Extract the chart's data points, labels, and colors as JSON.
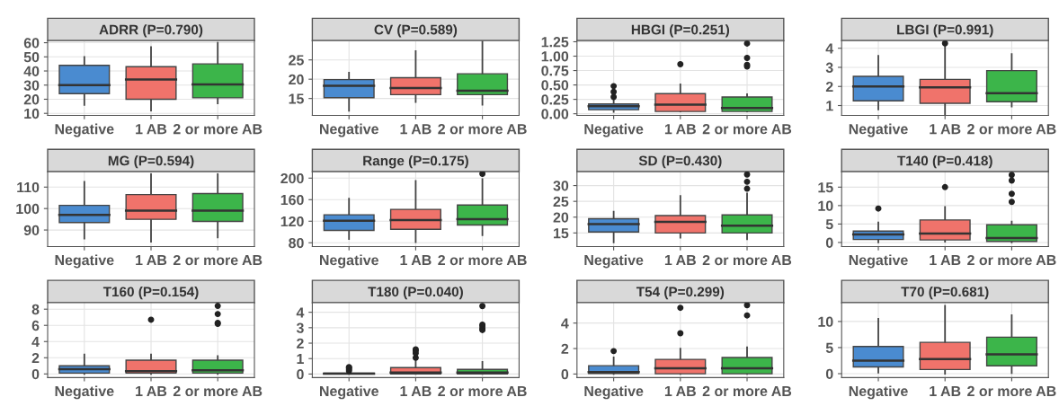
{
  "chart_data": [
    {
      "type": "box",
      "title": "ADRR (P=0.790)",
      "categories": [
        "Negative",
        "1 AB",
        "2 or more AB"
      ],
      "colors": [
        "#4a8bd0",
        "#f0736b",
        "#3cb54a"
      ],
      "ylim": [
        8.5,
        61.5
      ],
      "yticks": [
        10,
        20,
        30,
        40,
        50,
        60
      ],
      "grid": true,
      "boxes": [
        {
          "low": 16,
          "q1": 24,
          "median": 30,
          "q3": 44,
          "high": 50
        },
        {
          "low": 12,
          "q1": 20,
          "median": 34,
          "q3": 43,
          "high": 57
        },
        {
          "low": 17,
          "q1": 21,
          "median": 30.5,
          "q3": 45,
          "high": 60
        }
      ]
    },
    {
      "type": "box",
      "title": "CV (P=0.589)",
      "categories": [
        "Negative",
        "1 AB",
        "2 or more AB"
      ],
      "colors": [
        "#4a8bd0",
        "#f0736b",
        "#3cb54a"
      ],
      "ylim": [
        10.6,
        30
      ],
      "yticks": [
        15,
        20,
        25
      ],
      "grid": true,
      "boxes": [
        {
          "low": 11.8,
          "q1": 15.2,
          "median": 18.3,
          "q3": 19.9,
          "high": 21.7
        },
        {
          "low": 14.1,
          "q1": 16,
          "median": 17.7,
          "q3": 20.4,
          "high": 27.3
        },
        {
          "low": 13.4,
          "q1": 16,
          "median": 17,
          "q3": 21.4,
          "high": 29.8
        }
      ]
    },
    {
      "type": "box",
      "title": "HBGI (P=0.251)",
      "categories": [
        "Negative",
        "1 AB",
        "2 or more AB"
      ],
      "colors": [
        "#4a8bd0",
        "#f0736b",
        "#3cb54a"
      ],
      "ylim": [
        -0.03,
        1.27
      ],
      "yticks": [
        {
          "value": 0,
          "label": "0.00"
        },
        {
          "value": 0.25,
          "label": "0.25"
        },
        {
          "value": 0.5,
          "label": "0.50"
        },
        {
          "value": 0.75,
          "label": "0.75"
        },
        {
          "value": 1,
          "label": "1.00"
        },
        {
          "value": 1.25,
          "label": "1.25"
        }
      ],
      "grid": true,
      "boxes": [
        {
          "low": 0.03,
          "q1": 0.07,
          "median": 0.13,
          "q3": 0.17,
          "high": 0.25,
          "outliers": [
            0.29,
            0.38,
            0.48
          ]
        },
        {
          "low": 0.04,
          "q1": 0.04,
          "median": 0.16,
          "q3": 0.35,
          "high": 0.51,
          "outliers": [
            0.86
          ]
        },
        {
          "low": 0.04,
          "q1": 0.04,
          "median": 0.1,
          "q3": 0.29,
          "high": 0.34,
          "outliers": [
            0.82,
            0.85,
            0.97,
            1.22
          ]
        }
      ]
    },
    {
      "type": "box",
      "title": "LBGI (P=0.991)",
      "categories": [
        "Negative",
        "1 AB",
        "2 or more AB"
      ],
      "colors": [
        "#4a8bd0",
        "#f0736b",
        "#3cb54a"
      ],
      "ylim": [
        0.48,
        4.4
      ],
      "yticks": [
        1,
        2,
        3,
        4
      ],
      "grid": true,
      "boxes": [
        {
          "low": 0.8,
          "q1": 1.25,
          "median": 2.0,
          "q3": 2.53,
          "high": 3.6
        },
        {
          "low": 0.55,
          "q1": 1.12,
          "median": 1.95,
          "q3": 2.37,
          "high": 4.15,
          "outliers": [
            4.26
          ]
        },
        {
          "low": 0.95,
          "q1": 1.2,
          "median": 1.65,
          "q3": 2.83,
          "high": 3.7
        }
      ]
    },
    {
      "type": "box",
      "title": "MG (P=0.594)",
      "categories": [
        "Negative",
        "1 AB",
        "2 or more AB"
      ],
      "colors": [
        "#4a8bd0",
        "#f0736b",
        "#3cb54a"
      ],
      "ylim": [
        82.3,
        117.2
      ],
      "yticks": [
        90,
        100,
        110
      ],
      "grid": true,
      "boxes": [
        {
          "low": 86,
          "q1": 93.5,
          "median": 97,
          "q3": 101.5,
          "high": 112.5
        },
        {
          "low": 84.5,
          "q1": 95,
          "median": 99,
          "q3": 106.5,
          "high": 116
        },
        {
          "low": 86.5,
          "q1": 94,
          "median": 99,
          "q3": 107,
          "high": 116
        }
      ]
    },
    {
      "type": "box",
      "title": "Range (P=0.175)",
      "categories": [
        "Negative",
        "1 AB",
        "2 or more AB"
      ],
      "colors": [
        "#4a8bd0",
        "#f0736b",
        "#3cb54a"
      ],
      "ylim": [
        73,
        212
      ],
      "yticks": [
        80,
        120,
        160,
        200
      ],
      "grid": true,
      "boxes": [
        {
          "low": 87,
          "q1": 103,
          "median": 121,
          "q3": 132,
          "high": 162
        },
        {
          "low": 81,
          "q1": 105,
          "median": 122,
          "q3": 142,
          "high": 195
        },
        {
          "low": 94,
          "q1": 113,
          "median": 124,
          "q3": 150,
          "high": 198,
          "outliers": [
            208
          ]
        }
      ]
    },
    {
      "type": "box",
      "title": "SD (P=0.430)",
      "categories": [
        "Negative",
        "1 AB",
        "2 or more AB"
      ],
      "colors": [
        "#4a8bd0",
        "#f0736b",
        "#3cb54a"
      ],
      "ylim": [
        10.7,
        34.4
      ],
      "yticks": [
        15,
        20,
        25,
        30
      ],
      "grid": true,
      "boxes": [
        {
          "low": 12,
          "q1": 15.3,
          "median": 17.8,
          "q3": 19.5,
          "high": 21.7
        },
        {
          "low": 13.5,
          "q1": 15,
          "median": 18.5,
          "q3": 20.5,
          "high": 26.7
        },
        {
          "low": 13,
          "q1": 15,
          "median": 17.3,
          "q3": 20.7,
          "high": 27.5,
          "outliers": [
            29,
            31.2,
            33.5
          ]
        }
      ]
    },
    {
      "type": "box",
      "title": "T140 (P=0.418)",
      "categories": [
        "Negative",
        "1 AB",
        "2 or more AB"
      ],
      "colors": [
        "#4a8bd0",
        "#f0736b",
        "#3cb54a"
      ],
      "ylim": [
        -1.1,
        19.2
      ],
      "yticks": [
        0,
        5,
        10,
        15
      ],
      "grid": true,
      "boxes": [
        {
          "low": 0,
          "q1": 0.8,
          "median": 2.2,
          "q3": 3.1,
          "high": 5.4,
          "outliers": [
            9.2
          ]
        },
        {
          "low": 0.2,
          "q1": 0.7,
          "median": 2.4,
          "q3": 6.1,
          "high": 9.6,
          "outliers": [
            15.0
          ]
        },
        {
          "low": 0,
          "q1": 0.3,
          "median": 1.2,
          "q3": 4.8,
          "high": 5.7,
          "outliers": [
            11.0,
            13.2,
            16.8,
            18.3
          ]
        }
      ]
    },
    {
      "type": "box",
      "title": "T160 (P=0.154)",
      "categories": [
        "Negative",
        "1 AB",
        "2 or more AB"
      ],
      "colors": [
        "#4a8bd0",
        "#f0736b",
        "#3cb54a"
      ],
      "ylim": [
        -0.45,
        8.8
      ],
      "yticks": [
        0,
        2,
        4,
        6,
        8
      ],
      "grid": true,
      "boxes": [
        {
          "low": 0,
          "q1": 0.1,
          "median": 0.6,
          "q3": 1.0,
          "high": 2.4
        },
        {
          "low": 0,
          "q1": 0.1,
          "median": 0.35,
          "q3": 1.7,
          "high": 2.4,
          "outliers": [
            6.7
          ]
        },
        {
          "low": 0,
          "q1": 0.1,
          "median": 0.45,
          "q3": 1.7,
          "high": 2.2,
          "outliers": [
            6.2,
            6.3,
            7.4,
            8.4
          ]
        }
      ]
    },
    {
      "type": "box",
      "title": "T180 (P=0.040)",
      "categories": [
        "Negative",
        "1 AB",
        "2 or more AB"
      ],
      "colors": [
        "#4a8bd0",
        "#f0736b",
        "#3cb54a"
      ],
      "ylim": [
        -0.23,
        4.62
      ],
      "yticks": [
        0,
        1,
        2,
        3,
        4
      ],
      "grid": true,
      "boxes": [
        {
          "low": 0,
          "q1": 0,
          "median": 0.02,
          "q3": 0.05,
          "high": 0.1,
          "outliers": [
            0.2,
            0.3,
            0.4,
            0.45
          ]
        },
        {
          "low": 0,
          "q1": 0,
          "median": 0.1,
          "q3": 0.42,
          "high": 0.95,
          "outliers": [
            1.05,
            1.35,
            1.5,
            1.6
          ]
        },
        {
          "low": 0,
          "q1": 0,
          "median": 0.1,
          "q3": 0.3,
          "high": 0.78,
          "outliers": [
            2.85,
            2.95,
            3.1,
            3.2,
            4.4
          ]
        }
      ]
    },
    {
      "type": "box",
      "title": "T54 (P=0.299)",
      "categories": [
        "Negative",
        "1 AB",
        "2 or more AB"
      ],
      "colors": [
        "#4a8bd0",
        "#f0736b",
        "#3cb54a"
      ],
      "ylim": [
        -0.28,
        5.6
      ],
      "yticks": [
        0,
        2,
        4
      ],
      "grid": true,
      "boxes": [
        {
          "low": 0,
          "q1": 0.05,
          "median": 0.15,
          "q3": 0.65,
          "high": 1.3,
          "outliers": [
            1.8
          ]
        },
        {
          "low": 0,
          "q1": 0.02,
          "median": 0.45,
          "q3": 1.15,
          "high": 2.0,
          "outliers": [
            3.2,
            5.2
          ]
        },
        {
          "low": 0,
          "q1": 0.02,
          "median": 0.45,
          "q3": 1.3,
          "high": 2.1,
          "outliers": [
            4.6,
            5.4
          ]
        }
      ]
    },
    {
      "type": "box",
      "title": "T70 (P=0.681)",
      "categories": [
        "Negative",
        "1 AB",
        "2 or more AB"
      ],
      "colors": [
        "#4a8bd0",
        "#f0736b",
        "#3cb54a"
      ],
      "ylim": [
        -0.75,
        13.6
      ],
      "yticks": [
        0,
        5,
        10
      ],
      "grid": true,
      "boxes": [
        {
          "low": 0.2,
          "q1": 1.3,
          "median": 2.5,
          "q3": 5.2,
          "high": 10.5
        },
        {
          "low": 0,
          "q1": 0.8,
          "median": 2.8,
          "q3": 6.0,
          "high": 13.0
        },
        {
          "low": 0.1,
          "q1": 1.5,
          "median": 3.7,
          "q3": 7.0,
          "high": 11.2
        }
      ]
    }
  ]
}
